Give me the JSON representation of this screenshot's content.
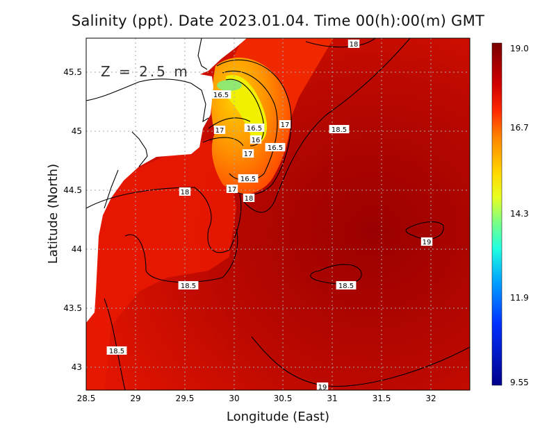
{
  "title": "Salinity (ppt). Date 2023.01.04. Time 00(h):00(m) GMT",
  "depth_label": "Z = 2.5 m",
  "x_axis": {
    "label": "Longitude (East)",
    "ticks": [
      "28.5",
      "29",
      "29.5",
      "30",
      "30.5",
      "31",
      "31.5",
      "32"
    ],
    "range": [
      28.5,
      32.4
    ]
  },
  "y_axis": {
    "label": "Latitude (North)",
    "ticks": [
      "45.5",
      "45",
      "44.5",
      "44",
      "43.5",
      "43"
    ],
    "range": [
      42.8,
      45.8
    ]
  },
  "colorbar": {
    "ticks": [
      "19.0",
      "16.7",
      "14.3",
      "11.9",
      "9.55"
    ],
    "range": [
      9.55,
      19.0
    ]
  },
  "contour_labels": [
    "18",
    "16.5",
    "17",
    "16.5",
    "16",
    "17",
    "16.5",
    "17",
    "18.5",
    "16.5",
    "17",
    "18",
    "18",
    "18.5",
    "19",
    "18.5",
    "18.5",
    "19"
  ],
  "colors": {
    "high": "#8b0000",
    "mid": "#ff2000",
    "plume": "#ff9000",
    "low_yellow": "#e8f000",
    "low_green": "#80e080",
    "land": "#ffffff"
  }
}
